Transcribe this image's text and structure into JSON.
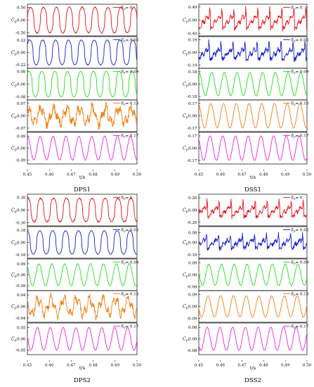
{
  "axis_labels": {
    "y_main": "C",
    "y_sub": "p",
    "x": "t/s"
  },
  "legend_prefix": "δ",
  "legend_sub": "p",
  "x_ticks": [
    "0.45",
    "0.46",
    "0.47",
    "0.48",
    "0.49",
    "0.50"
  ],
  "colors": [
    "#e8111b",
    "#1520c8",
    "#23e01c",
    "#f07f12",
    "#ee22e8"
  ],
  "chart_data": [
    {
      "type": "line",
      "title": "DPS1",
      "xlabel": "t/s",
      "ylabel": "Cp",
      "xlim": [
        0.45,
        0.5
      ],
      "panels": [
        {
          "name": "= 0",
          "color": "#e8111b",
          "ylim": [
            -0.62,
            0.62
          ],
          "yticks": [
            "0.50",
            "0.00",
            "-0.50"
          ],
          "amp": 0.5,
          "cycles": 8.5,
          "noise": 0.05,
          "shape": "pulse"
        },
        {
          "name": "= 0.05",
          "color": "#1520c8",
          "ylim": [
            -0.28,
            0.28
          ],
          "yticks": [
            "0.22",
            "0.00",
            "-0.22"
          ],
          "amp": 0.22,
          "cycles": 8.5,
          "noise": 0.03,
          "shape": "pulse"
        },
        {
          "name": "= 0.09",
          "color": "#23e01c",
          "ylim": [
            -0.1,
            0.1
          ],
          "yticks": [
            "0.08",
            "0.00",
            "-0.08"
          ],
          "amp": 0.08,
          "cycles": 8.5,
          "noise": 0.02,
          "shape": "pulse"
        },
        {
          "name": "= 0.13",
          "color": "#f07f12",
          "ylim": [
            -0.09,
            0.09
          ],
          "yticks": [
            "0.07",
            "0.00",
            "-0.07"
          ],
          "amp": 0.06,
          "cycles": 8.5,
          "noise": 0.35,
          "shape": "noisy"
        },
        {
          "name": "= 0.17",
          "color": "#ee22e8",
          "ylim": [
            -0.12,
            0.12
          ],
          "yticks": [
            "0.09",
            "0.00",
            "-0.09"
          ],
          "amp": 0.09,
          "cycles": 8.5,
          "noise": 0.02,
          "shape": "sine"
        }
      ]
    },
    {
      "type": "line",
      "title": "DSS1",
      "xlabel": "t/s",
      "ylabel": "Cp",
      "xlim": [
        0.45,
        0.5
      ],
      "panels": [
        {
          "name": "= 0",
          "color": "#e8111b",
          "ylim": [
            -0.48,
            0.48
          ],
          "yticks": [
            "0.40",
            "0.00",
            "-0.40"
          ],
          "amp": 0.4,
          "cycles": 9,
          "noise": 0.12,
          "shape": "spiky"
        },
        {
          "name": "= 0.05",
          "color": "#1520c8",
          "ylim": [
            -0.24,
            0.24
          ],
          "yticks": [
            "0.19",
            "0.00",
            "-0.19"
          ],
          "amp": 0.17,
          "cycles": 9,
          "noise": 0.18,
          "shape": "spiky"
        },
        {
          "name": "= 0.09",
          "color": "#23e01c",
          "ylim": [
            -0.23,
            0.23
          ],
          "yticks": [
            "0.18",
            "0.00",
            "-0.18"
          ],
          "amp": 0.17,
          "cycles": 8.5,
          "noise": 0.02,
          "shape": "sine"
        },
        {
          "name": "= 0.13",
          "color": "#f07f12",
          "ylim": [
            -0.22,
            0.22
          ],
          "yticks": [
            "0.17",
            "0.00",
            "-0.17"
          ],
          "amp": 0.17,
          "cycles": 8.5,
          "noise": 0.01,
          "shape": "sine"
        },
        {
          "name": "= 0.17",
          "color": "#ee22e8",
          "ylim": [
            -0.22,
            0.22
          ],
          "yticks": [
            "0.17",
            "0.00",
            "-0.17"
          ],
          "amp": 0.17,
          "cycles": 8.5,
          "noise": 0.01,
          "shape": "sine"
        }
      ]
    },
    {
      "type": "line",
      "title": "DPS2",
      "xlabel": "t/s",
      "ylabel": "Cp",
      "xlim": [
        0.45,
        0.5
      ],
      "panels": [
        {
          "name": "= 0",
          "color": "#e8111b",
          "ylim": [
            -0.38,
            0.38
          ],
          "yticks": [
            "0.30",
            "0.00",
            "-0.30"
          ],
          "amp": 0.28,
          "cycles": 8.5,
          "noise": 0.06,
          "shape": "pulse"
        },
        {
          "name": "= 0.05",
          "color": "#1520c8",
          "ylim": [
            -0.23,
            0.23
          ],
          "yticks": [
            "0.18",
            "0.00",
            "-0.18"
          ],
          "amp": 0.17,
          "cycles": 8.5,
          "noise": 0.02,
          "shape": "pulse"
        },
        {
          "name": "= 0.09",
          "color": "#23e01c",
          "ylim": [
            -0.13,
            0.13
          ],
          "yticks": [
            "0.09",
            "0.00",
            "-0.09"
          ],
          "amp": 0.09,
          "cycles": 8.5,
          "noise": 0.03,
          "shape": "sine"
        },
        {
          "name": "= 0.13",
          "color": "#f07f12",
          "ylim": [
            -0.055,
            0.055
          ],
          "yticks": [
            "0.04",
            "0.00",
            "-0.04"
          ],
          "amp": 0.04,
          "cycles": 8.5,
          "noise": 0.25,
          "shape": "noisy"
        },
        {
          "name": "= 0.17",
          "color": "#ee22e8",
          "ylim": [
            -0.07,
            0.07
          ],
          "yticks": [
            "0.05",
            "0.00",
            "-0.05"
          ],
          "amp": 0.05,
          "cycles": 8.5,
          "noise": 0.03,
          "shape": "sine"
        }
      ]
    },
    {
      "type": "line",
      "title": "DSS2",
      "xlabel": "t/s",
      "ylabel": "Cp",
      "xlim": [
        0.45,
        0.5
      ],
      "panels": [
        {
          "name": "= 0",
          "color": "#e8111b",
          "ylim": [
            -0.26,
            0.26
          ],
          "yticks": [
            "0.20",
            "0.00",
            "-0.20"
          ],
          "amp": 0.18,
          "cycles": 9,
          "noise": 0.14,
          "shape": "spiky"
        },
        {
          "name": "= 0.05",
          "color": "#1520c8",
          "ylim": [
            -0.13,
            0.13
          ],
          "yticks": [
            "0.08",
            "0.00",
            "-0.10"
          ],
          "amp": 0.08,
          "cycles": 9,
          "noise": 0.2,
          "shape": "spiky"
        },
        {
          "name": "= 0.09",
          "color": "#23e01c",
          "ylim": [
            -0.12,
            0.12
          ],
          "yticks": [
            "0.09",
            "0.00",
            "-0.09"
          ],
          "amp": 0.08,
          "cycles": 8.5,
          "noise": 0.04,
          "shape": "sine"
        },
        {
          "name": "= 0.13",
          "color": "#f07f12",
          "ylim": [
            -0.12,
            0.12
          ],
          "yticks": [
            "0.09",
            "0.00",
            "-0.09"
          ],
          "amp": 0.08,
          "cycles": 8.5,
          "noise": 0.02,
          "shape": "sine"
        },
        {
          "name": "= 0.17",
          "color": "#ee22e8",
          "ylim": [
            -0.11,
            0.11
          ],
          "yticks": [
            "0.08",
            "0.00",
            "-0.08"
          ],
          "amp": 0.08,
          "cycles": 8.5,
          "noise": 0.02,
          "shape": "sine"
        }
      ]
    }
  ]
}
